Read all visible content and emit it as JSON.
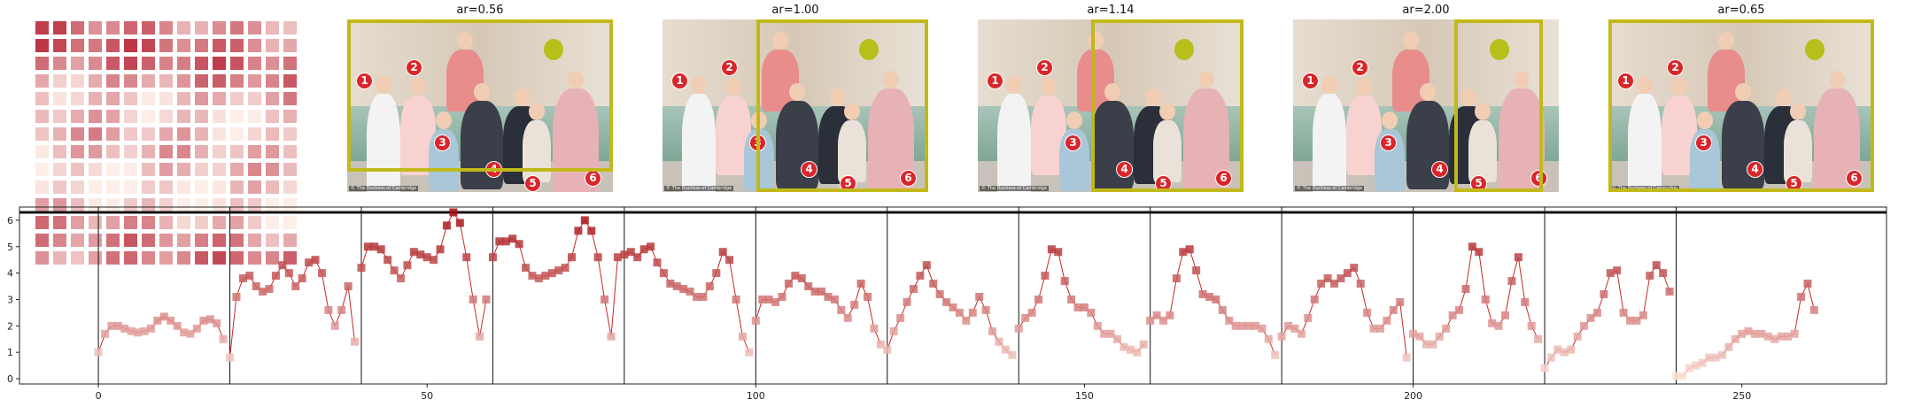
{
  "panels": [
    {
      "title": "ar=0.56"
    },
    {
      "title": "ar=1.00"
    },
    {
      "title": "ar=1.14"
    },
    {
      "title": "ar=2.00"
    },
    {
      "title": "ar=0.65"
    }
  ],
  "photo": {
    "caption": "© The Duchess of Cambridge",
    "badges": [
      "1",
      "2",
      "3",
      "4",
      "5",
      "6"
    ]
  },
  "colors": {
    "crop_box": "#c1b91a",
    "line": "#c62828",
    "marker_low": "#fde0d8",
    "marker_high": "#a50f15",
    "badge": "#d9262b"
  },
  "chart_data": {
    "type": "line",
    "x_ticks": [
      0,
      50,
      100,
      150,
      200,
      250
    ],
    "y_ticks": [
      0,
      1,
      2,
      3,
      4,
      5,
      6
    ],
    "xlim": [
      -12,
      272
    ],
    "ylim": [
      -0.2,
      6.5
    ],
    "top_line_y": 6.3,
    "segment_boundaries": [
      0,
      20,
      40,
      60,
      80,
      100,
      120,
      140,
      160,
      180,
      200,
      220,
      240
    ],
    "series": [
      {
        "values": [
          1.0,
          1.7,
          2.0,
          2.0,
          1.9,
          1.8,
          1.75,
          1.8,
          1.9,
          2.2,
          2.35,
          2.2,
          2.0,
          1.75,
          1.7,
          1.9,
          2.2,
          2.25,
          2.1,
          1.5,
          0.8,
          3.1,
          3.8,
          3.9,
          3.5,
          3.3,
          3.4,
          3.9,
          4.3,
          4.0,
          3.5,
          3.8,
          4.4,
          4.5,
          4.0,
          2.6,
          2.0,
          2.6,
          3.5,
          1.4,
          4.2,
          5.0,
          5.0,
          4.9,
          4.5,
          4.1,
          3.8,
          4.3,
          4.8,
          4.7,
          4.6,
          4.5,
          4.9,
          5.8,
          6.3,
          5.9,
          4.6,
          3.0,
          1.6,
          3.0,
          4.6,
          5.2,
          5.2,
          5.3,
          5.1,
          4.2,
          3.9,
          3.8,
          3.9,
          4.0,
          4.1,
          4.2,
          4.6,
          5.6,
          6.0,
          5.6,
          4.6,
          3.0,
          1.6,
          4.6,
          4.7,
          4.8,
          4.6,
          4.9,
          5.0,
          4.4,
          4.0,
          3.6,
          3.5,
          3.4,
          3.3,
          3.1,
          3.1,
          3.5,
          4.0,
          4.8,
          4.5,
          3.0,
          1.6,
          1.0,
          2.2,
          3.0,
          3.0,
          2.9,
          3.1,
          3.6,
          3.9,
          3.8,
          3.5,
          3.3,
          3.3,
          3.1,
          3.0,
          2.6,
          2.3,
          2.8,
          3.6,
          3.1,
          1.9,
          1.3,
          1.1,
          1.8,
          2.3,
          2.9,
          3.4,
          3.9,
          4.3,
          3.6,
          3.2,
          2.9,
          2.7,
          2.5,
          2.2,
          2.5,
          3.1,
          2.6,
          1.8,
          1.4,
          1.1,
          0.9,
          1.9,
          2.3,
          2.5,
          3.0,
          3.9,
          4.9,
          4.8,
          3.7,
          3.0,
          2.7,
          2.7,
          2.5,
          2.0,
          1.7,
          1.7,
          1.5,
          1.2,
          1.1,
          1.0,
          1.3,
          2.2,
          2.4,
          2.2,
          2.4,
          3.8,
          4.8,
          4.9,
          4.1,
          3.2,
          3.1,
          3.0,
          2.6,
          2.2,
          2.0,
          2.0,
          2.0,
          2.0,
          1.9,
          1.5,
          0.9,
          1.6,
          2.0,
          1.9,
          1.7,
          2.3,
          3.0,
          3.6,
          3.8,
          3.6,
          3.8,
          4.0,
          4.2,
          3.6,
          2.5,
          1.9,
          1.9,
          2.2,
          2.6,
          2.9,
          0.8,
          1.7,
          1.6,
          1.3,
          1.3,
          1.6,
          1.9,
          2.4,
          2.6,
          3.4,
          5.0,
          4.8,
          3.0,
          2.1,
          2.0,
          2.4,
          3.7,
          4.6,
          2.9,
          2.0,
          1.5,
          0.4,
          0.8,
          1.1,
          1.0,
          1.1,
          1.6,
          2.0,
          2.3,
          2.5,
          3.2,
          4.0,
          4.1,
          2.5,
          2.2,
          2.2,
          2.4,
          3.9,
          4.3,
          4.0,
          3.3,
          0.1,
          0.1,
          0.4,
          0.5,
          0.6,
          0.8,
          0.8,
          0.9,
          1.2,
          1.5,
          1.7,
          1.8,
          1.7,
          1.7,
          1.6,
          1.5,
          1.6,
          1.6,
          1.7,
          3.1,
          3.6,
          2.6
        ]
      }
    ]
  }
}
